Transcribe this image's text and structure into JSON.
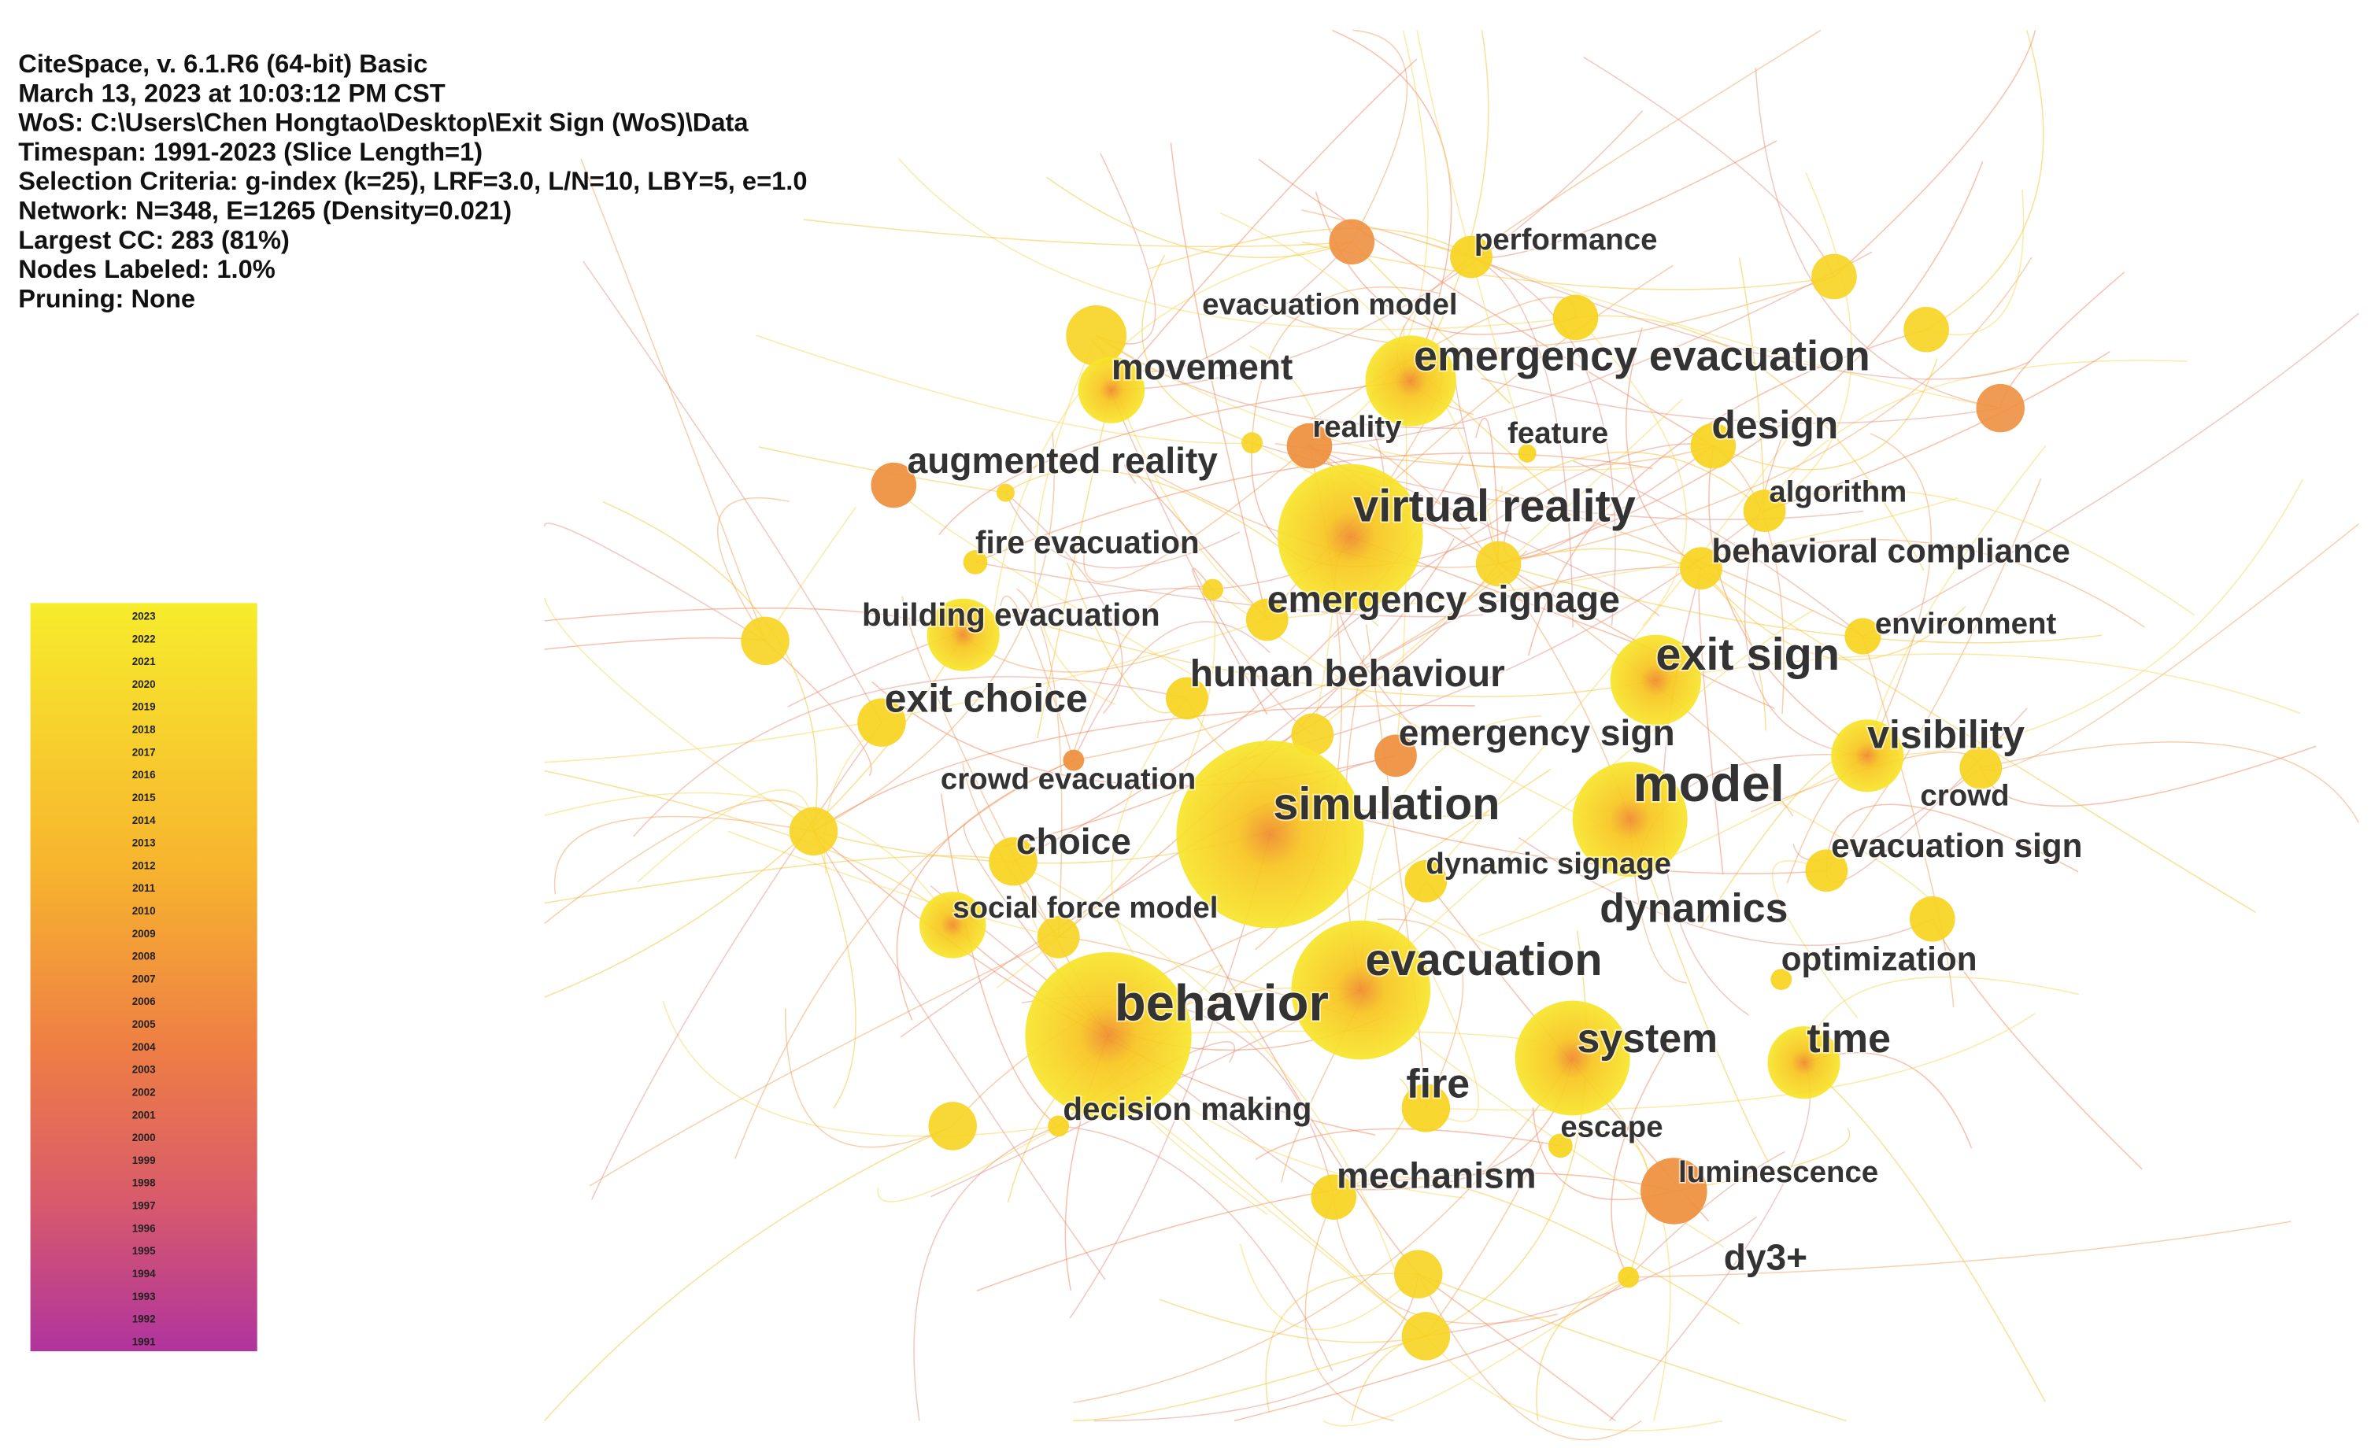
{
  "header": {
    "lines": [
      "CiteSpace, v. 6.1.R6 (64-bit) Basic",
      "March 13, 2023 at 10:03:12 PM CST",
      "WoS: C:\\Users\\Chen Hongtao\\Desktop\\Exit Sign (WoS)\\Data",
      "Timespan: 1991-2023 (Slice Length=1)",
      "Selection Criteria: g-index (k=25), LRF=3.0, L/N=10, LBY=5, e=1.0",
      "Network: N=348, E=1265 (Density=0.021)",
      "Largest CC: 283 (81%)",
      "Nodes Labeled: 1.0%",
      "Pruning: None"
    ]
  },
  "legend": {
    "years": [
      2023,
      2022,
      2021,
      2020,
      2019,
      2018,
      2017,
      2016,
      2015,
      2014,
      2013,
      2012,
      2011,
      2010,
      2009,
      2008,
      2007,
      2006,
      2005,
      2004,
      2003,
      2002,
      2001,
      2000,
      1999,
      1998,
      1997,
      1996,
      1995,
      1994,
      1993,
      1992,
      1991
    ]
  },
  "nodes": [
    {
      "label": "performance"
    },
    {
      "label": "evacuation model"
    },
    {
      "label": "emergency evacuation"
    },
    {
      "label": "movement"
    },
    {
      "label": "reality"
    },
    {
      "label": "feature"
    },
    {
      "label": "design"
    },
    {
      "label": "augmented reality"
    },
    {
      "label": "algorithm"
    },
    {
      "label": "virtual reality"
    },
    {
      "label": "fire evacuation"
    },
    {
      "label": "behavioral compliance"
    },
    {
      "label": "building evacuation"
    },
    {
      "label": "emergency signage"
    },
    {
      "label": "environment"
    },
    {
      "label": "exit sign"
    },
    {
      "label": "human behaviour"
    },
    {
      "label": "exit choice"
    },
    {
      "label": "emergency sign"
    },
    {
      "label": "visibility"
    },
    {
      "label": "crowd evacuation"
    },
    {
      "label": "model"
    },
    {
      "label": "crowd"
    },
    {
      "label": "simulation"
    },
    {
      "label": "choice"
    },
    {
      "label": "dynamic signage"
    },
    {
      "label": "evacuation sign"
    },
    {
      "label": "social force model"
    },
    {
      "label": "dynamics"
    },
    {
      "label": "optimization"
    },
    {
      "label": "evacuation"
    },
    {
      "label": "behavior"
    },
    {
      "label": "system"
    },
    {
      "label": "time"
    },
    {
      "label": "fire"
    },
    {
      "label": "decision making"
    },
    {
      "label": "escape"
    },
    {
      "label": "mechanism"
    },
    {
      "label": "luminescence"
    },
    {
      "label": "dy3+"
    }
  ]
}
